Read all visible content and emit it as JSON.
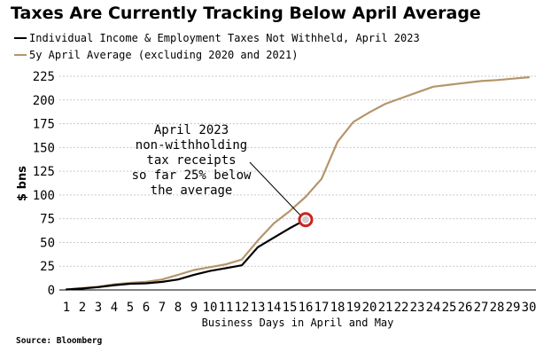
{
  "title": "Taxes Are Currently Tracking Below April Average",
  "legend": [
    {
      "label": "Individual Income & Employment Taxes Not Withheld, April 2023",
      "color": "#000000"
    },
    {
      "label": "5y April Average (excluding 2020 and 2021)",
      "color": "#b5956b"
    }
  ],
  "source": "Source: Bloomberg",
  "chart_data": {
    "type": "line",
    "title": "Taxes Are Currently Tracking Below April Average",
    "xlabel": "Business Days in April and May",
    "ylabel": "$ bns",
    "ylim": [
      0,
      225
    ],
    "yticks": [
      0,
      25,
      50,
      75,
      100,
      125,
      150,
      175,
      200,
      225
    ],
    "xlim": [
      1,
      30
    ],
    "xticks": [
      1,
      2,
      3,
      4,
      5,
      6,
      7,
      8,
      9,
      10,
      11,
      12,
      13,
      14,
      15,
      16,
      17,
      18,
      19,
      20,
      21,
      22,
      23,
      24,
      25,
      26,
      27,
      28,
      29,
      30
    ],
    "grid": "horizontal",
    "series": [
      {
        "name": "Individual Income & Employment Taxes Not Withheld, April 2023",
        "color": "#000000",
        "x": [
          1,
          2,
          3,
          4,
          5,
          6,
          7,
          8,
          9,
          10,
          11,
          12,
          13,
          14,
          15,
          16
        ],
        "values": [
          0.5,
          1.5,
          3,
          5,
          6.5,
          7,
          8.5,
          11,
          16,
          20,
          23,
          26,
          45,
          55,
          65,
          74
        ]
      },
      {
        "name": "5y April Average (excluding 2020 and 2021)",
        "color": "#b5956b",
        "x": [
          1,
          2,
          3,
          4,
          5,
          6,
          7,
          8,
          9,
          10,
          11,
          12,
          13,
          14,
          15,
          16,
          17,
          18,
          19,
          20,
          21,
          22,
          23,
          24,
          25,
          26,
          27,
          28,
          29,
          30
        ],
        "values": [
          0.5,
          2,
          3.5,
          6,
          7.5,
          8.5,
          11,
          16,
          21,
          24,
          27,
          32,
          52,
          70,
          83,
          98,
          117,
          156,
          177,
          187,
          196,
          202,
          208,
          214,
          216,
          218,
          220,
          221,
          222.5,
          224
        ]
      }
    ],
    "annotation": {
      "lines": [
        "April 2023",
        "non-withholding",
        "tax receipts",
        "so far 25% below",
        "the average"
      ],
      "target": {
        "x": 16,
        "y": 74
      }
    }
  }
}
